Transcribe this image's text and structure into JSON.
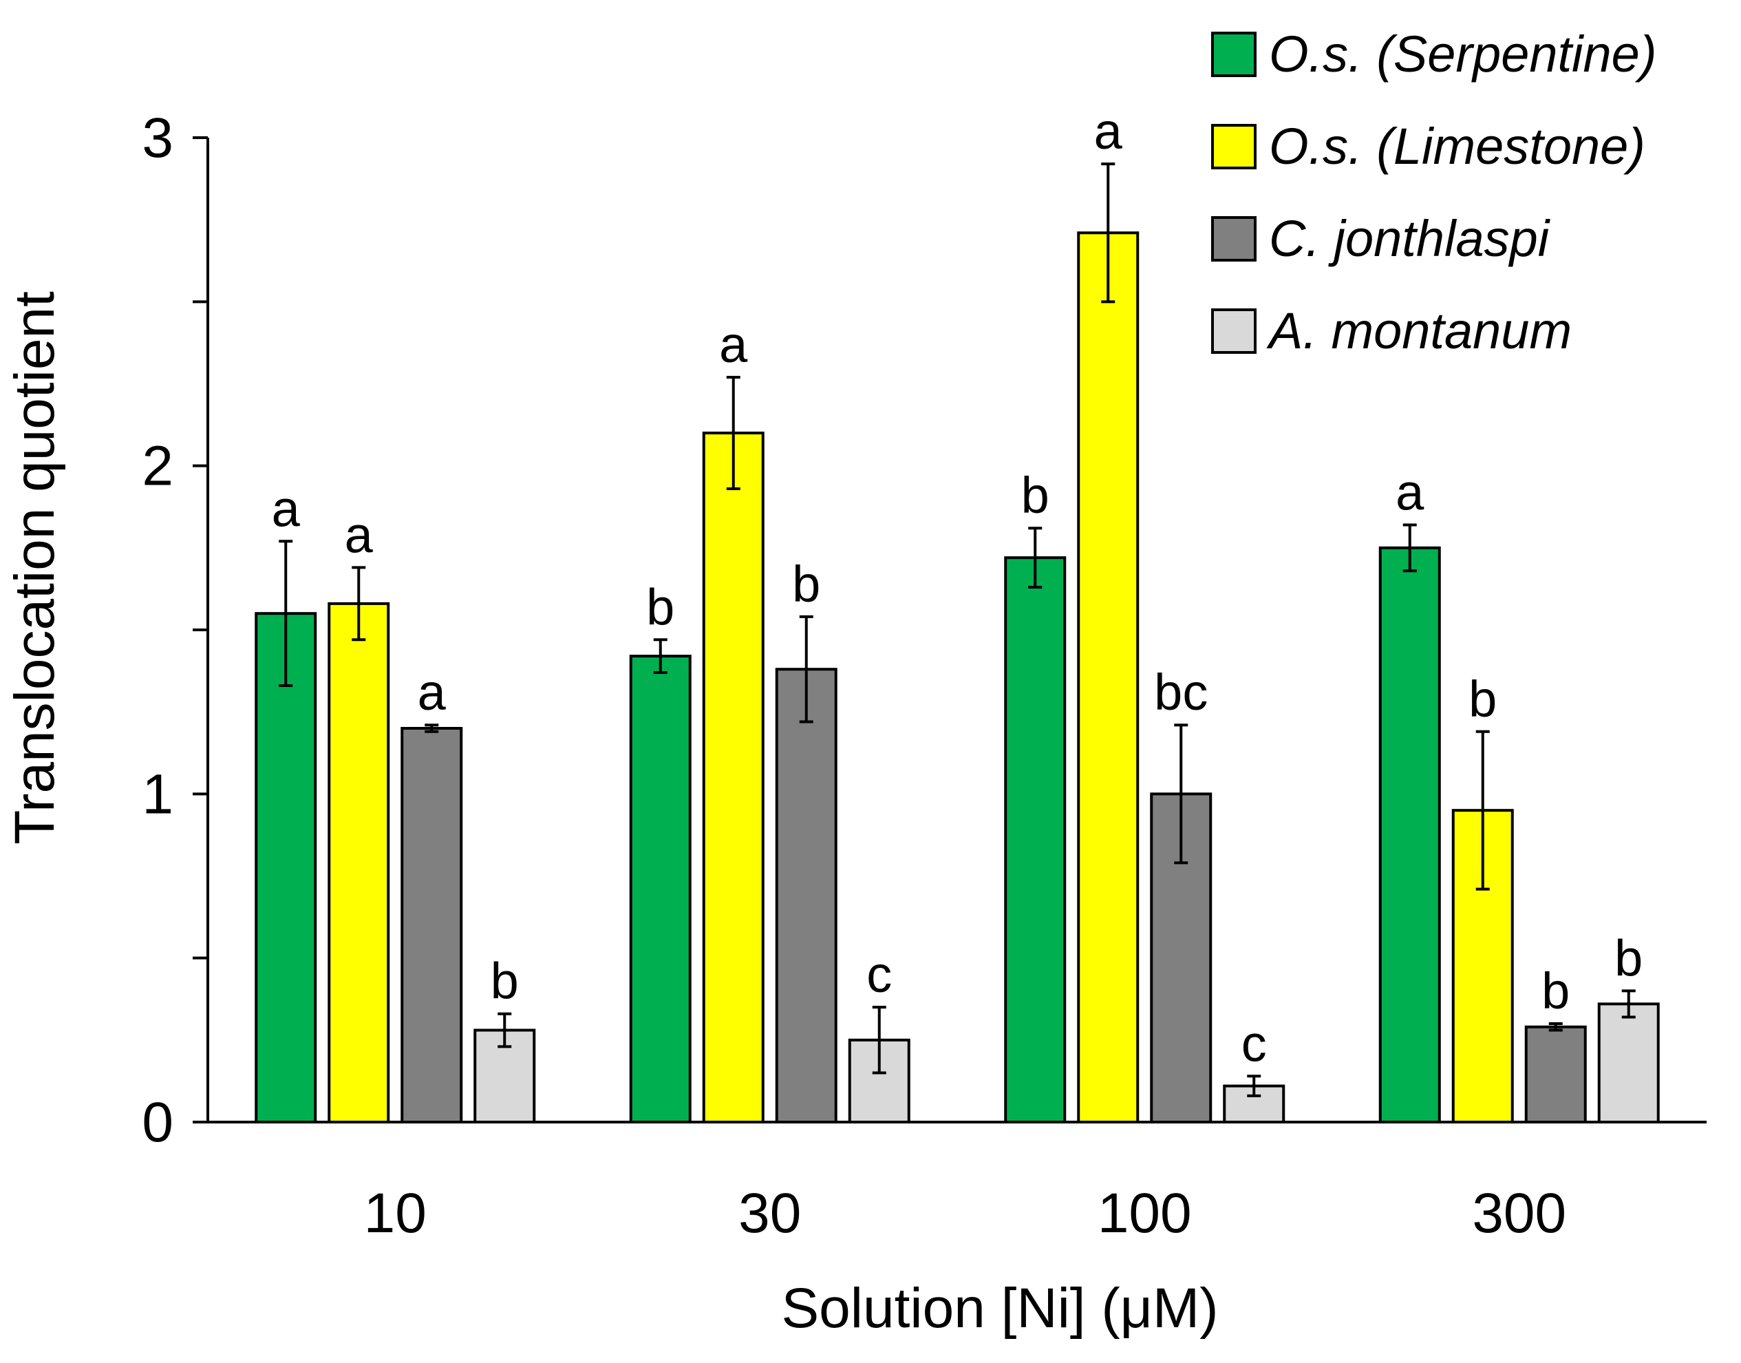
{
  "chart_data": {
    "type": "bar",
    "xlabel": "Solution [Ni] (μM)",
    "ylabel": "Translocation quotient",
    "ylim": [
      0,
      3
    ],
    "yticks": [
      0,
      1,
      2,
      3
    ],
    "minor_yticks": [
      0.5,
      1.5,
      2.5
    ],
    "grid": false,
    "legend_position": "top-right",
    "categories": [
      "10",
      "30",
      "100",
      "300"
    ],
    "series": [
      {
        "name": "O.s. (Serpentine)",
        "color": "#00b050",
        "values": [
          1.55,
          1.42,
          1.72,
          1.75
        ],
        "errors": [
          0.22,
          0.05,
          0.09,
          0.07
        ],
        "letters": [
          "a",
          "b",
          "b",
          "a"
        ]
      },
      {
        "name": "O.s. (Limestone)",
        "color": "#ffff00",
        "values": [
          1.58,
          2.1,
          2.71,
          0.95
        ],
        "errors": [
          0.11,
          0.17,
          0.21,
          0.24
        ],
        "letters": [
          "a",
          "a",
          "a",
          "b"
        ]
      },
      {
        "name": "C. jonthlaspi",
        "color": "#808080",
        "values": [
          1.2,
          1.38,
          1.0,
          0.29
        ],
        "errors": [
          0.01,
          0.16,
          0.21,
          0.01
        ],
        "letters": [
          "a",
          "b",
          "bc",
          "b"
        ]
      },
      {
        "name": "A. montanum",
        "color": "#d9d9d9",
        "values": [
          0.28,
          0.25,
          0.11,
          0.36
        ],
        "errors": [
          0.05,
          0.1,
          0.03,
          0.04
        ],
        "letters": [
          "b",
          "c",
          "c",
          "b"
        ]
      }
    ]
  }
}
